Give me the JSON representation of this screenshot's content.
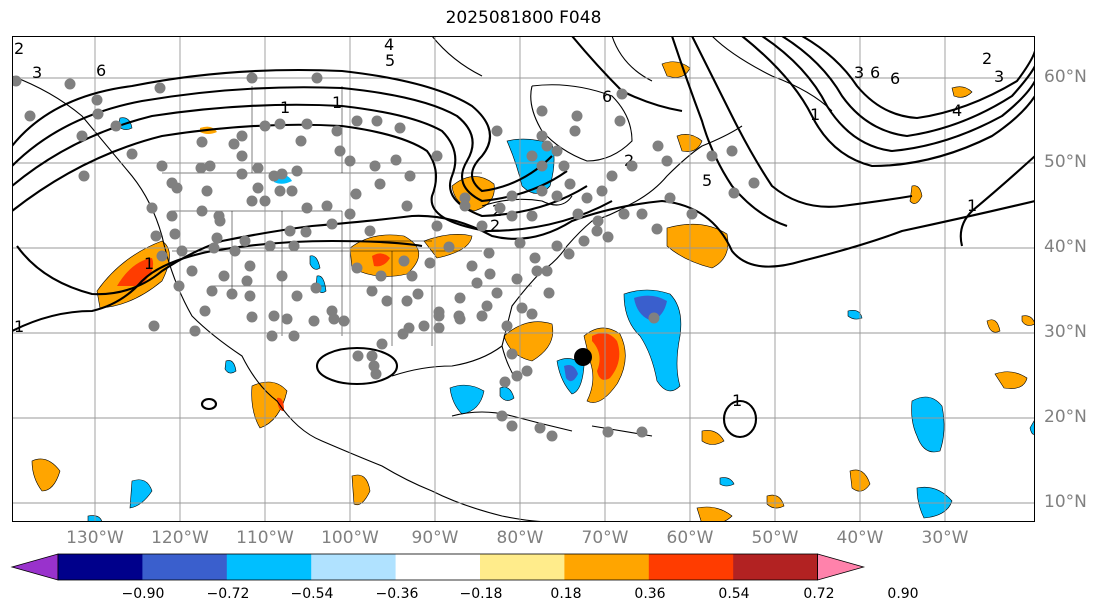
{
  "title": "2025081800 F048",
  "lat_labels": [
    "60°N",
    "50°N",
    "40°N",
    "30°N",
    "20°N",
    "10°N"
  ],
  "lon_labels": [
    "130°W",
    "120°W",
    "110°W",
    "100°W",
    "90°W",
    "80°W",
    "70°W",
    "60°W",
    "50°W",
    "40°W",
    "30°W"
  ],
  "contour_labels": [
    "2",
    "3",
    "6",
    "5",
    "1",
    "6",
    "2",
    "1",
    "2",
    "5",
    "4",
    "6",
    "3",
    "2",
    "1",
    "1",
    "1",
    "1",
    "4",
    "3",
    "6",
    "2",
    "1"
  ],
  "colorbar": {
    "ticks": [
      "−0.90",
      "−0.72",
      "−0.54",
      "−0.36",
      "−0.18",
      "0.18",
      "0.36",
      "0.54",
      "0.72",
      "0.90"
    ],
    "colors": [
      "#9932CC",
      "#00008B",
      "#3A5FCD",
      "#00BFFF",
      "#B0E2FF",
      "#FFFFFF",
      "#FFEC8B",
      "#FFA500",
      "#FF3C00",
      "#B22222",
      "#FF82AB"
    ]
  },
  "colors": {
    "grid": "#999999",
    "contour": "#000000",
    "station": "#808080",
    "storm_center": "#000000",
    "positive_mid": "#FFA500",
    "positive_high": "#FF3C00",
    "negative_mid": "#00BFFF",
    "negative_high": "#3A5FCD"
  }
}
